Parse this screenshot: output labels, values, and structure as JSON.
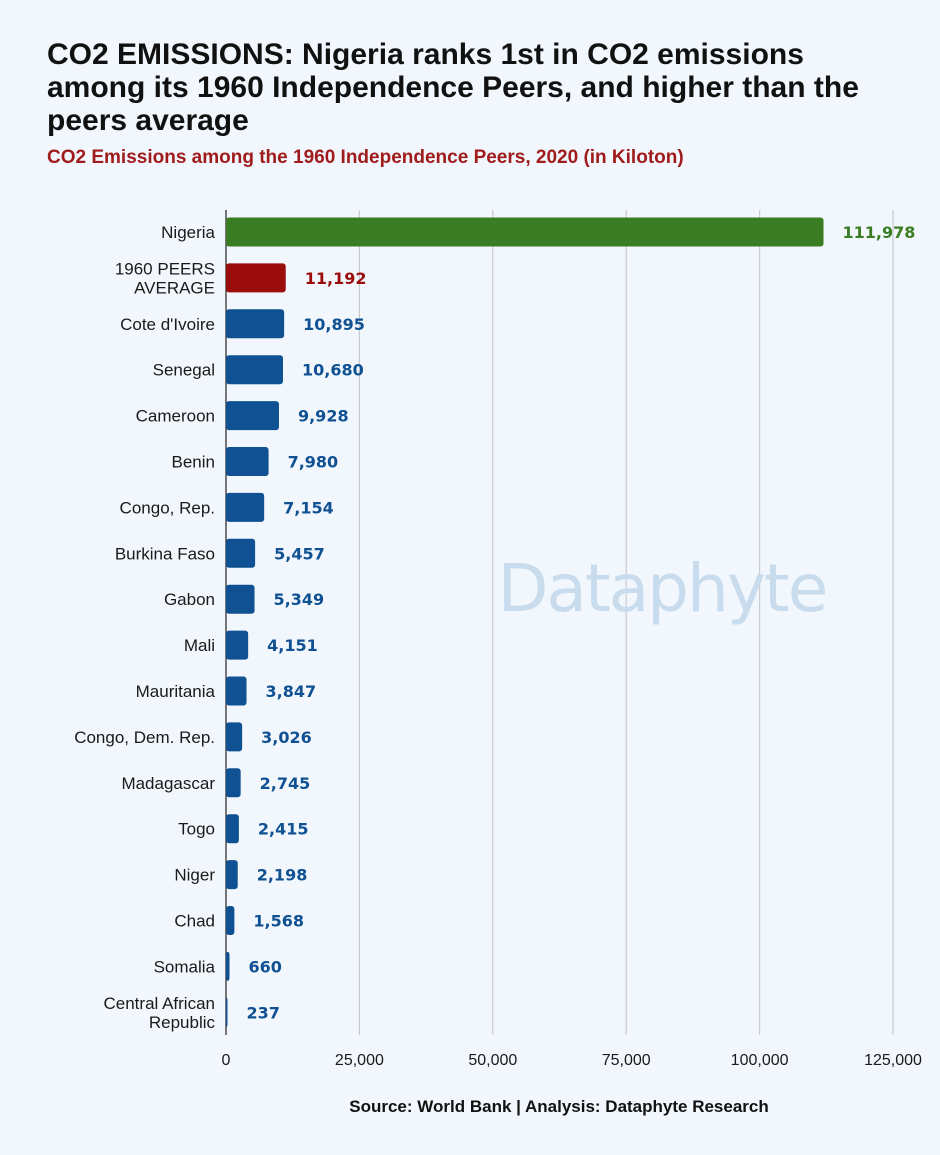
{
  "colors": {
    "default_bar": "#0f5192",
    "highlight_bar": "#3b7d23",
    "average_bar": "#9b0d0d",
    "grid": "#c8ccd0"
  },
  "watermark": "Dataphyte",
  "source": "Source: World Bank | Analysis: Dataphyte Research",
  "chart_data": {
    "type": "bar",
    "orientation": "horizontal",
    "title": "CO2 EMISSIONS: Nigeria ranks 1st in CO2 emissions among its 1960 Independence Peers, and higher than the peers average",
    "subtitle": "CO2 Emissions among the 1960 Independence Peers, 2020 (in Kiloton)",
    "xlabel": "",
    "ylabel": "",
    "xlim": [
      0,
      125000
    ],
    "xticks": [
      0,
      25000,
      50000,
      75000,
      100000,
      125000
    ],
    "xtick_labels": [
      "0",
      "25,000",
      "50,000",
      "75,000",
      "100,000",
      "125,000"
    ],
    "grid": true,
    "legend": "none",
    "categories": [
      {
        "lines": [
          "Nigeria"
        ],
        "value": 111978,
        "label": "111,978",
        "style": "highlight"
      },
      {
        "lines": [
          "1960 PEERS",
          "AVERAGE"
        ],
        "value": 11192,
        "label": "11,192",
        "style": "average"
      },
      {
        "lines": [
          "Cote d'Ivoire"
        ],
        "value": 10895,
        "label": "10,895",
        "style": "default"
      },
      {
        "lines": [
          "Senegal"
        ],
        "value": 10680,
        "label": "10,680",
        "style": "default"
      },
      {
        "lines": [
          "Cameroon"
        ],
        "value": 9928,
        "label": "9,928",
        "style": "default"
      },
      {
        "lines": [
          "Benin"
        ],
        "value": 7980,
        "label": "7,980",
        "style": "default"
      },
      {
        "lines": [
          "Congo, Rep."
        ],
        "value": 7154,
        "label": "7,154",
        "style": "default"
      },
      {
        "lines": [
          "Burkina Faso"
        ],
        "value": 5457,
        "label": "5,457",
        "style": "default"
      },
      {
        "lines": [
          "Gabon"
        ],
        "value": 5349,
        "label": "5,349",
        "style": "default"
      },
      {
        "lines": [
          "Mali"
        ],
        "value": 4151,
        "label": "4,151",
        "style": "default"
      },
      {
        "lines": [
          "Mauritania"
        ],
        "value": 3847,
        "label": "3,847",
        "style": "default"
      },
      {
        "lines": [
          "Congo, Dem. Rep."
        ],
        "value": 3026,
        "label": "3,026",
        "style": "default"
      },
      {
        "lines": [
          "Madagascar"
        ],
        "value": 2745,
        "label": "2,745",
        "style": "default"
      },
      {
        "lines": [
          "Togo"
        ],
        "value": 2415,
        "label": "2,415",
        "style": "default"
      },
      {
        "lines": [
          "Niger"
        ],
        "value": 2198,
        "label": "2,198",
        "style": "default"
      },
      {
        "lines": [
          "Chad"
        ],
        "value": 1568,
        "label": "1,568",
        "style": "default"
      },
      {
        "lines": [
          "Somalia"
        ],
        "value": 660,
        "label": "660",
        "style": "default"
      },
      {
        "lines": [
          "Central African",
          "Republic"
        ],
        "value": 237,
        "label": "237",
        "style": "default"
      }
    ]
  }
}
